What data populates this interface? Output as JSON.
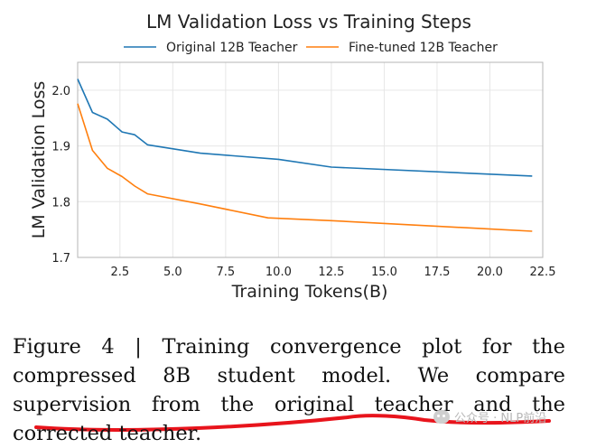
{
  "chart_data": {
    "type": "line",
    "title": "LM Validation Loss vs Training Steps",
    "xlabel": "Training Tokens(B)",
    "ylabel": "LM Validation Loss",
    "xlim": [
      0.5,
      22.5
    ],
    "ylim": [
      1.7,
      2.05
    ],
    "grid": true,
    "legend_position": "top",
    "x_ticks": [
      2.5,
      5.0,
      7.5,
      10.0,
      12.5,
      15.0,
      17.5,
      20.0,
      22.5
    ],
    "x_tick_labels": [
      "2.5",
      "5.0",
      "7.5",
      "10.0",
      "12.5",
      "15.0",
      "17.5",
      "20.0",
      "22.5"
    ],
    "y_ticks": [
      1.7,
      1.8,
      1.9,
      2.0
    ],
    "y_tick_labels": [
      "1.7",
      "1.8",
      "1.9",
      "2.0"
    ],
    "series": [
      {
        "name": "Original 12B Teacher",
        "color": "#1f77b4",
        "x": [
          0.5,
          1.2,
          1.9,
          2.6,
          3.2,
          3.8,
          6.3,
          10.0,
          12.5,
          22.0
        ],
        "y": [
          2.02,
          1.96,
          1.948,
          1.925,
          1.92,
          1.902,
          1.887,
          1.876,
          1.862,
          1.846
        ]
      },
      {
        "name": "Fine-tuned 12B Teacher",
        "color": "#ff7f0e",
        "x": [
          0.5,
          1.2,
          1.9,
          2.6,
          3.2,
          3.8,
          6.3,
          9.5,
          12.5,
          22.0
        ],
        "y": [
          1.976,
          1.892,
          1.86,
          1.845,
          1.828,
          1.814,
          1.796,
          1.771,
          1.766,
          1.747
        ]
      }
    ]
  },
  "caption": {
    "text": "Figure 4 | Training convergence plot for the compressed 8B student model. We compare supervision from the original teacher and the corrected teacher."
  },
  "annotation": {
    "underline_color": "#e8141c"
  },
  "watermark": {
    "text": "公众号 · NLP前沿"
  }
}
